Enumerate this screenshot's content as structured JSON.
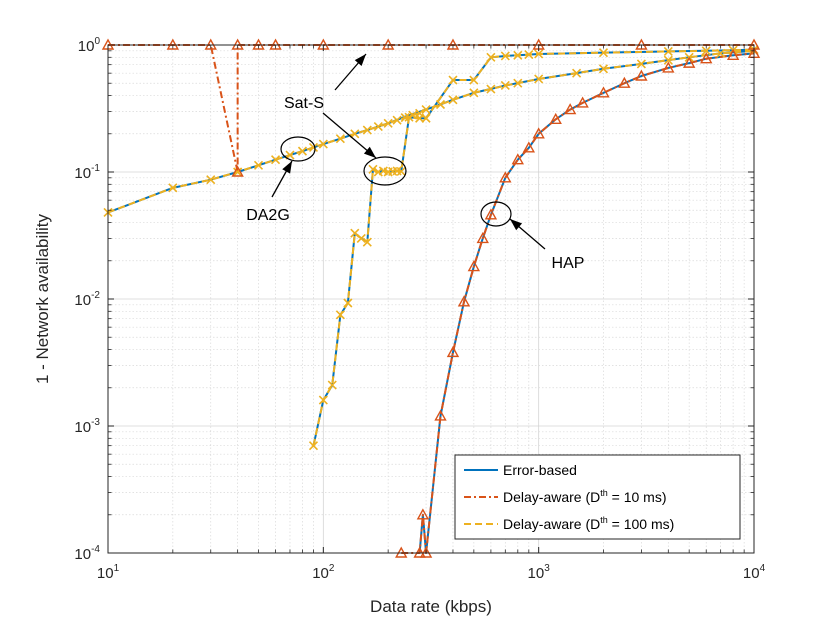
{
  "chart_data": {
    "type": "line",
    "xscale": "log",
    "yscale": "log",
    "xlim": [
      10,
      10000
    ],
    "ylim": [
      0.0001,
      1
    ],
    "xlabel": "Data rate (kbps)",
    "ylabel": "1 - Network availability",
    "grid": true,
    "minor_grid": true,
    "legend_position": "bottom-right",
    "x_ticks": [
      {
        "value": 10,
        "base": "10",
        "exp": "1"
      },
      {
        "value": 100,
        "base": "10",
        "exp": "2"
      },
      {
        "value": 1000,
        "base": "10",
        "exp": "3"
      },
      {
        "value": 10000,
        "base": "10",
        "exp": "4"
      }
    ],
    "y_ticks": [
      {
        "value": 0.0001,
        "base": "10",
        "exp": "-4"
      },
      {
        "value": 0.001,
        "base": "10",
        "exp": "-3"
      },
      {
        "value": 0.01,
        "base": "10",
        "exp": "-2"
      },
      {
        "value": 0.1,
        "base": "10",
        "exp": "-1"
      },
      {
        "value": 1,
        "base": "10",
        "exp": "0"
      }
    ],
    "legend": [
      {
        "key": "error",
        "text": "Error-based",
        "sup": "",
        "suffix": "",
        "color": "#0072BD",
        "marker": "none"
      },
      {
        "key": "d10",
        "text": "Delay-aware (D",
        "sup": "th",
        "suffix": " = 10 ms)",
        "color": "#D95319",
        "marker": "triangle"
      },
      {
        "key": "d100",
        "text": "Delay-aware (D",
        "sup": "th",
        "suffix": " = 100 ms)",
        "color": "#EDB120",
        "marker": "x"
      }
    ],
    "series": [
      {
        "group": "DA2G",
        "legend_key": "error",
        "color": "#0072BD",
        "dash": "solid",
        "marker": "none",
        "x": [
          10,
          20,
          30,
          40,
          50,
          60,
          70,
          80,
          90,
          100,
          120,
          140,
          160,
          180,
          200,
          250,
          300,
          400,
          500,
          700,
          1000,
          1500,
          2000,
          3000,
          4000,
          5000,
          7000,
          10000
        ],
        "y": [
          0.048,
          0.075,
          0.087,
          0.1,
          0.113,
          0.125,
          0.136,
          0.146,
          0.156,
          0.166,
          0.183,
          0.2,
          0.214,
          0.228,
          0.242,
          0.28,
          0.31,
          0.37,
          0.42,
          0.48,
          0.54,
          0.6,
          0.65,
          0.71,
          0.76,
          0.8,
          0.86,
          0.9
        ]
      },
      {
        "group": "DA2G",
        "legend_key": "d100",
        "color": "#EDB120",
        "dash": "dashed",
        "marker": "x",
        "x": [
          10,
          20,
          30,
          40,
          50,
          60,
          70,
          80,
          90,
          100,
          120,
          140,
          160,
          180,
          200,
          220,
          240,
          260,
          280,
          300,
          350,
          400,
          500,
          600,
          700,
          800,
          1000,
          1500,
          2000,
          3000,
          4000,
          5000,
          7000,
          10000
        ],
        "y": [
          0.048,
          0.075,
          0.087,
          0.1,
          0.113,
          0.125,
          0.136,
          0.146,
          0.156,
          0.166,
          0.183,
          0.2,
          0.214,
          0.228,
          0.242,
          0.256,
          0.268,
          0.28,
          0.29,
          0.31,
          0.34,
          0.37,
          0.42,
          0.45,
          0.48,
          0.5,
          0.54,
          0.6,
          0.65,
          0.71,
          0.76,
          0.8,
          0.86,
          0.9
        ]
      },
      {
        "group": "DA2G",
        "legend_key": "d10",
        "color": "#D95319",
        "dash": "dashdot",
        "marker": "triangle",
        "x": [
          10,
          20,
          30,
          40,
          40,
          50,
          60,
          100,
          200,
          400,
          1000,
          3000,
          10000
        ],
        "y": [
          1,
          1,
          1,
          0.1,
          1,
          1,
          1,
          1,
          1,
          1,
          1,
          1,
          1
        ]
      },
      {
        "group": "Sat-S",
        "legend_key": "error",
        "color": "#0072BD",
        "dash": "solid",
        "marker": "none",
        "x": [
          90,
          100,
          110,
          120,
          130,
          140,
          150,
          160,
          170,
          180,
          190,
          200,
          210,
          220,
          230,
          250,
          280,
          300,
          400,
          500,
          600,
          700,
          800,
          900,
          1000,
          2000,
          4000,
          6000,
          8000,
          10000
        ],
        "y": [
          0.0007,
          0.0016,
          0.0021,
          0.0075,
          0.0093,
          0.033,
          0.03,
          0.028,
          0.105,
          0.1,
          0.102,
          0.1,
          0.101,
          0.102,
          0.101,
          0.27,
          0.265,
          0.265,
          0.53,
          0.53,
          0.8,
          0.82,
          0.83,
          0.84,
          0.85,
          0.87,
          0.89,
          0.9,
          0.91,
          0.92
        ]
      },
      {
        "group": "Sat-S",
        "legend_key": "d100",
        "color": "#EDB120",
        "dash": "dashed",
        "marker": "x",
        "x": [
          90,
          100,
          110,
          120,
          130,
          140,
          150,
          160,
          170,
          180,
          190,
          200,
          210,
          220,
          230,
          250,
          280,
          300,
          400,
          500,
          600,
          700,
          800,
          900,
          1000,
          2000,
          4000,
          6000,
          8000,
          10000
        ],
        "y": [
          0.0007,
          0.0016,
          0.0021,
          0.0075,
          0.0093,
          0.033,
          0.03,
          0.028,
          0.105,
          0.1,
          0.102,
          0.1,
          0.101,
          0.102,
          0.101,
          0.27,
          0.265,
          0.265,
          0.53,
          0.53,
          0.8,
          0.82,
          0.83,
          0.84,
          0.85,
          0.87,
          0.89,
          0.9,
          0.91,
          0.92
        ]
      },
      {
        "group": "HAP",
        "legend_key": "error",
        "color": "#0072BD",
        "dash": "solid",
        "marker": "none",
        "x": [
          280,
          290,
          300,
          350,
          400,
          450,
          500,
          550,
          600,
          700,
          800,
          900,
          1000,
          1200,
          1400,
          1600,
          2000,
          2500,
          3000,
          4000,
          5000,
          6000,
          8000,
          10000
        ],
        "y": [
          0.0001,
          0.0002,
          0.0001,
          0.0012,
          0.0038,
          0.0095,
          0.018,
          0.03,
          0.046,
          0.09,
          0.125,
          0.155,
          0.2,
          0.26,
          0.31,
          0.35,
          0.42,
          0.5,
          0.57,
          0.66,
          0.72,
          0.78,
          0.83,
          0.86
        ]
      },
      {
        "group": "HAP",
        "legend_key": "d10",
        "color": "#D95319",
        "dash": "dashdot",
        "marker": "triangle",
        "x": [
          230,
          280,
          290,
          300,
          350,
          400,
          450,
          500,
          550,
          600,
          700,
          800,
          900,
          1000,
          1200,
          1400,
          1600,
          2000,
          2500,
          3000,
          4000,
          5000,
          6000,
          8000,
          10000
        ],
        "y": [
          0.0001,
          0.0001,
          0.0002,
          0.0001,
          0.0012,
          0.0038,
          0.0095,
          0.018,
          0.03,
          0.046,
          0.09,
          0.125,
          0.155,
          0.2,
          0.26,
          0.31,
          0.35,
          0.42,
          0.5,
          0.57,
          0.66,
          0.72,
          0.78,
          0.83,
          0.86
        ]
      }
    ],
    "annotations": [
      {
        "text": "Sat-S"
      },
      {
        "text": "DA2G"
      },
      {
        "text": "HAP"
      }
    ]
  }
}
